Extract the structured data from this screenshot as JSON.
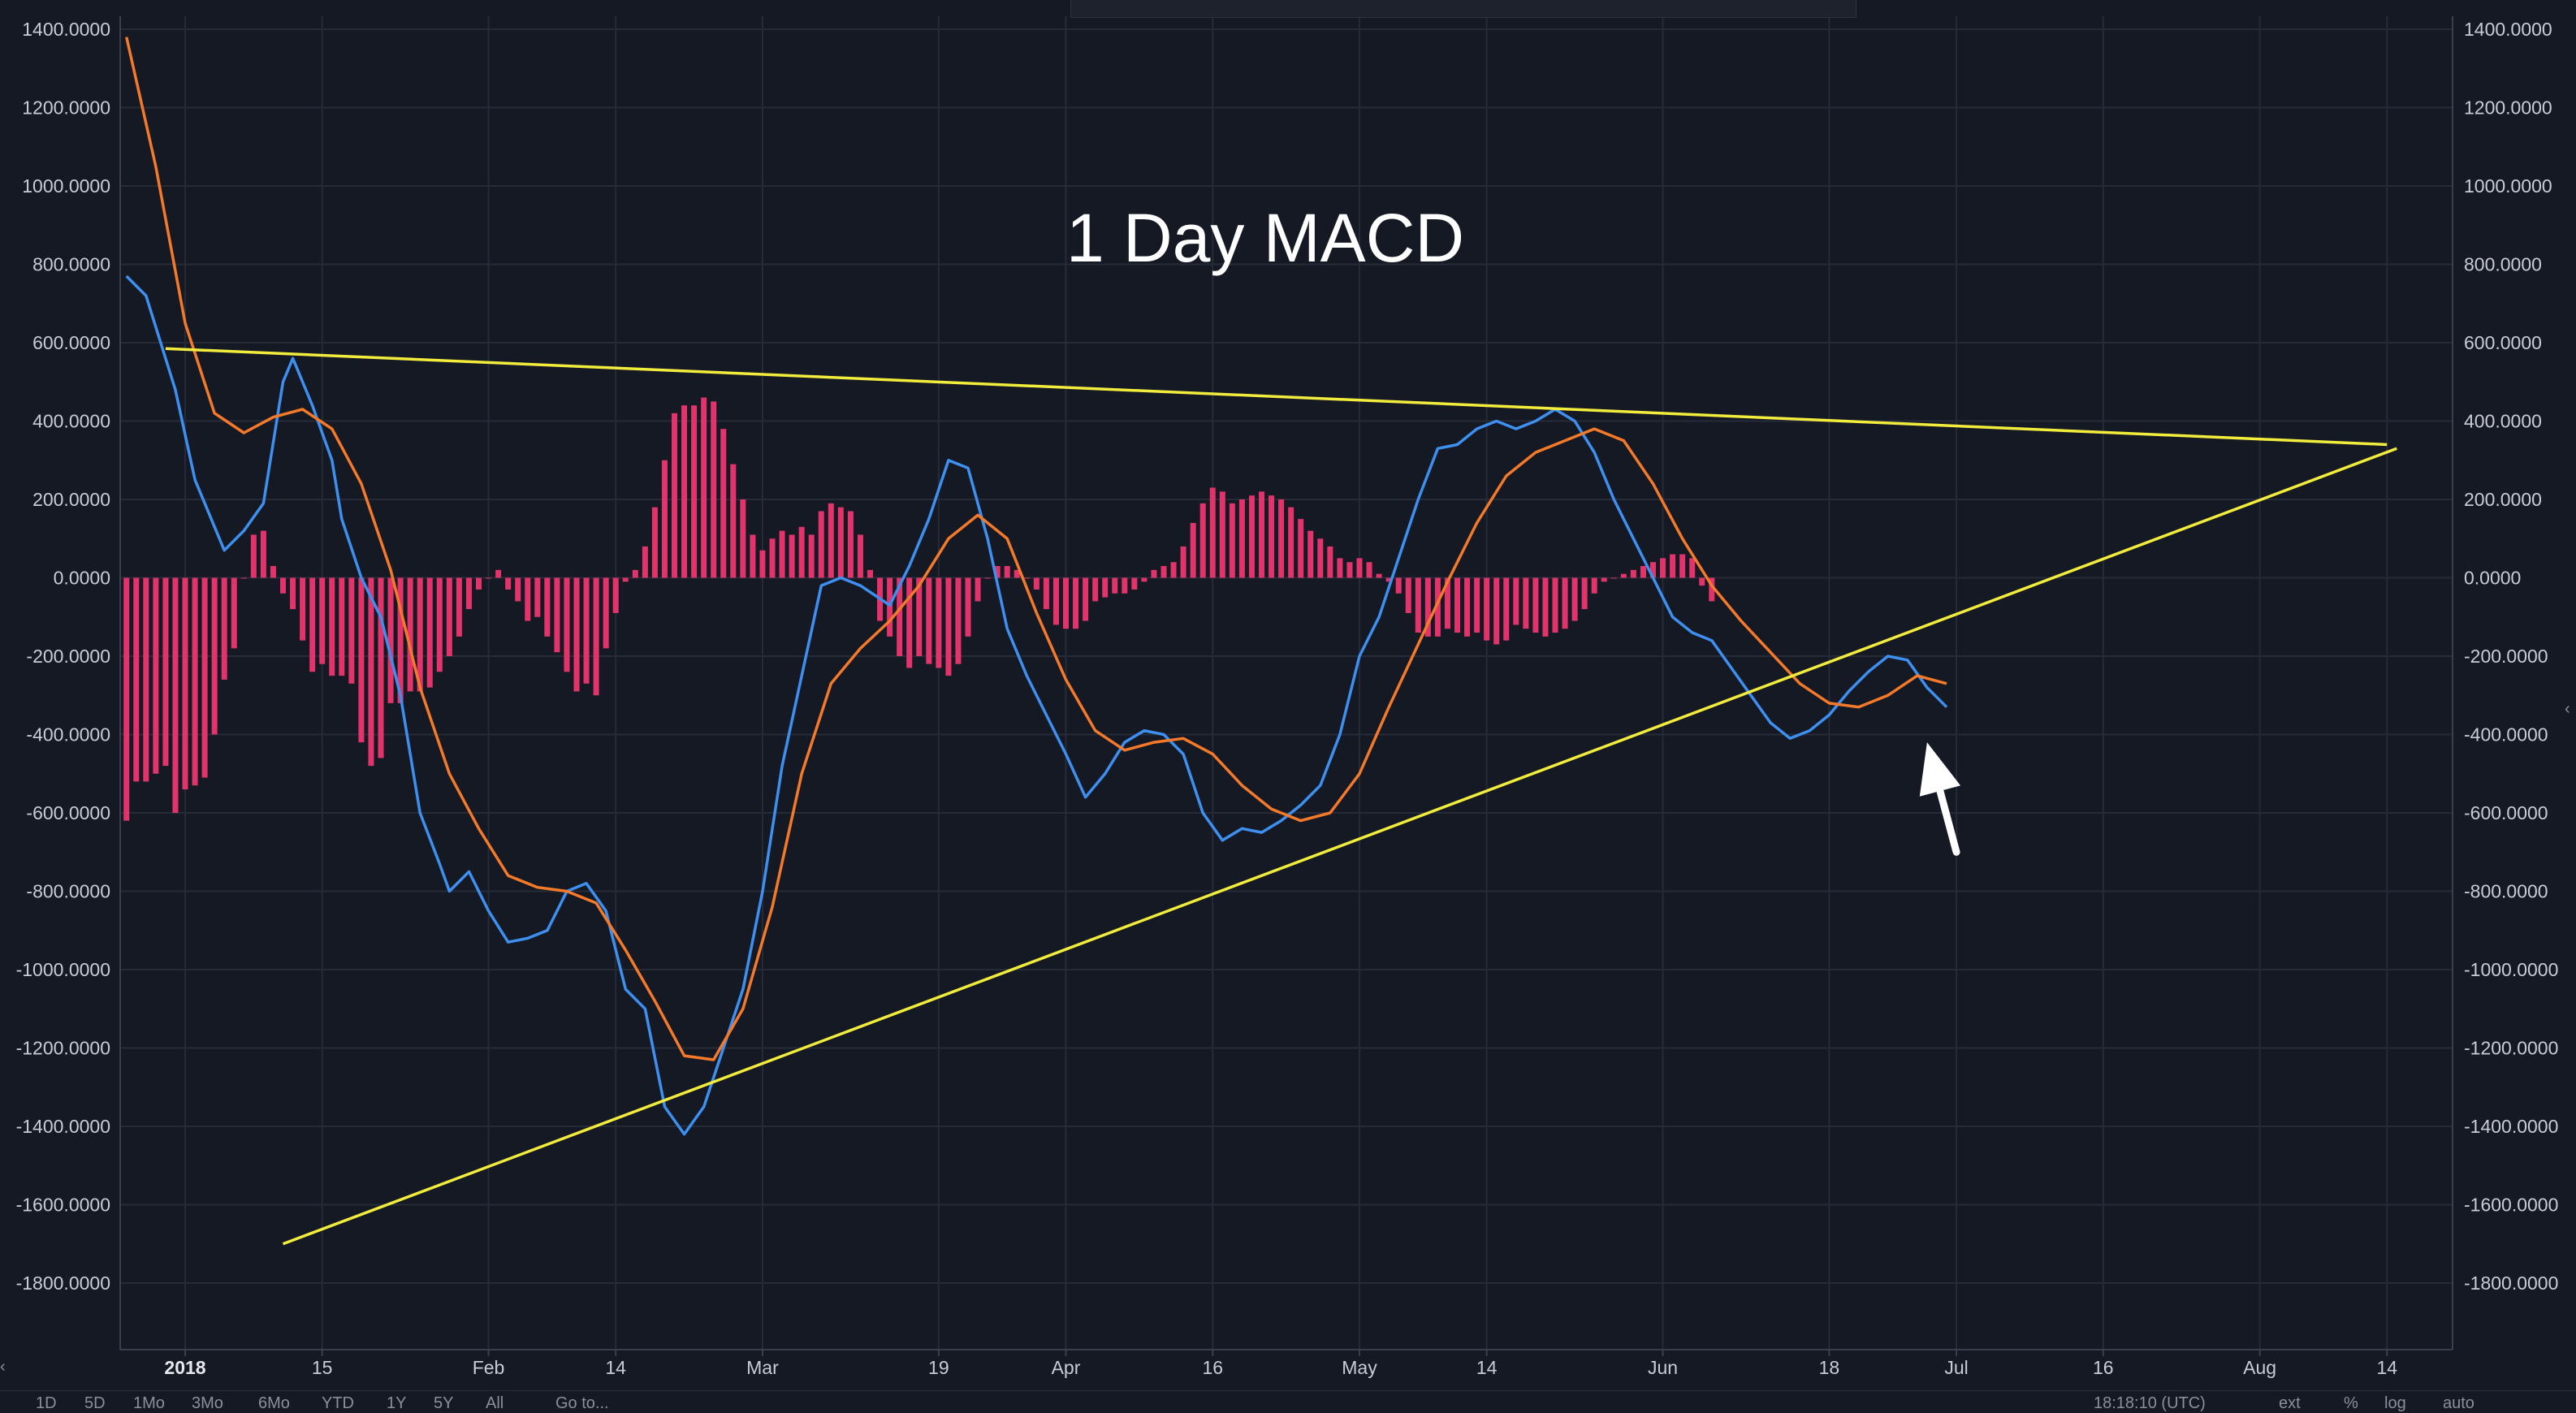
{
  "colors": {
    "background": "#151924",
    "grid": "#262b38",
    "axis_text": "#c9ccd6",
    "macd_line": "#3d8ff0",
    "signal_line": "#f47a2a",
    "histogram": "#e2336b",
    "trendline": "#f2ec3c",
    "arrow": "#ffffff"
  },
  "chart_data": {
    "type": "line",
    "title": "1 Day MACD",
    "x_axis": {
      "type": "date",
      "range": [
        "2017-12-26",
        "2018-08-16"
      ],
      "ticks": [
        {
          "date": "2018-01-01",
          "label": "2018",
          "bold": true
        },
        {
          "date": "2018-01-15",
          "label": "15"
        },
        {
          "date": "2018-02-01",
          "label": "Feb"
        },
        {
          "date": "2018-02-14",
          "label": "14"
        },
        {
          "date": "2018-03-01",
          "label": "Mar"
        },
        {
          "date": "2018-03-19",
          "label": "19"
        },
        {
          "date": "2018-04-01",
          "label": "Apr"
        },
        {
          "date": "2018-04-16",
          "label": "16"
        },
        {
          "date": "2018-05-01",
          "label": "May"
        },
        {
          "date": "2018-05-14",
          "label": "14"
        },
        {
          "date": "2018-06-01",
          "label": "Jun"
        },
        {
          "date": "2018-06-18",
          "label": "18"
        },
        {
          "date": "2018-07-01",
          "label": "Jul"
        },
        {
          "date": "2018-07-16",
          "label": "16"
        },
        {
          "date": "2018-08-01",
          "label": "Aug"
        },
        {
          "date": "2018-08-14",
          "label": "14"
        }
      ]
    },
    "y_axis": {
      "range": [
        -1900,
        1400
      ],
      "ticks": [
        1400,
        1200,
        1000,
        800,
        600,
        400,
        200,
        0,
        -200,
        -400,
        -600,
        -800,
        -1000,
        -1200,
        -1400,
        -1600,
        -1800
      ],
      "tick_labels": [
        "1400.0000",
        "1200.0000",
        "1000.0000",
        "800.0000",
        "600.0000",
        "400.0000",
        "200.0000",
        "0.0000",
        "-200.0000",
        "-400.0000",
        "-600.0000",
        "-800.0000",
        "-1000.0000",
        "-1200.0000",
        "-1400.0000",
        "-1600.0000",
        "-1800.0000"
      ],
      "grid": true,
      "labels_on": "both sides"
    },
    "series": [
      {
        "kind": "line",
        "color": "#3d8ff0",
        "points": [
          [
            "2017-12-26",
            770
          ],
          [
            "2017-12-28",
            720
          ],
          [
            "2017-12-31",
            480
          ],
          [
            "2018-01-02",
            250
          ],
          [
            "2018-01-05",
            70
          ],
          [
            "2018-01-07",
            120
          ],
          [
            "2018-01-09",
            190
          ],
          [
            "2018-01-11",
            500
          ],
          [
            "2018-01-12",
            560
          ],
          [
            "2018-01-14",
            440
          ],
          [
            "2018-01-16",
            300
          ],
          [
            "2018-01-17",
            150
          ],
          [
            "2018-01-19",
            0
          ],
          [
            "2018-01-21",
            -100
          ],
          [
            "2018-01-23",
            -300
          ],
          [
            "2018-01-25",
            -600
          ],
          [
            "2018-01-27",
            -730
          ],
          [
            "2018-01-28",
            -800
          ],
          [
            "2018-01-30",
            -750
          ],
          [
            "2018-02-01",
            -850
          ],
          [
            "2018-02-03",
            -930
          ],
          [
            "2018-02-05",
            -920
          ],
          [
            "2018-02-07",
            -900
          ],
          [
            "2018-02-09",
            -800
          ],
          [
            "2018-02-11",
            -780
          ],
          [
            "2018-02-13",
            -850
          ],
          [
            "2018-02-15",
            -1050
          ],
          [
            "2018-02-17",
            -1100
          ],
          [
            "2018-02-19",
            -1350
          ],
          [
            "2018-02-21",
            -1420
          ],
          [
            "2018-02-23",
            -1350
          ],
          [
            "2018-02-25",
            -1200
          ],
          [
            "2018-02-27",
            -1050
          ],
          [
            "2018-03-01",
            -800
          ],
          [
            "2018-03-03",
            -480
          ],
          [
            "2018-03-05",
            -250
          ],
          [
            "2018-03-07",
            -20
          ],
          [
            "2018-03-09",
            0
          ],
          [
            "2018-03-11",
            -20
          ],
          [
            "2018-03-14",
            -70
          ],
          [
            "2018-03-16",
            30
          ],
          [
            "2018-03-18",
            150
          ],
          [
            "2018-03-20",
            300
          ],
          [
            "2018-03-22",
            280
          ],
          [
            "2018-03-24",
            100
          ],
          [
            "2018-03-26",
            -130
          ],
          [
            "2018-03-28",
            -250
          ],
          [
            "2018-03-30",
            -350
          ],
          [
            "2018-04-01",
            -450
          ],
          [
            "2018-04-03",
            -560
          ],
          [
            "2018-04-05",
            -500
          ],
          [
            "2018-04-07",
            -420
          ],
          [
            "2018-04-09",
            -390
          ],
          [
            "2018-04-11",
            -400
          ],
          [
            "2018-04-13",
            -450
          ],
          [
            "2018-04-15",
            -600
          ],
          [
            "2018-04-17",
            -670
          ],
          [
            "2018-04-19",
            -640
          ],
          [
            "2018-04-21",
            -650
          ],
          [
            "2018-04-23",
            -620
          ],
          [
            "2018-04-25",
            -580
          ],
          [
            "2018-04-27",
            -530
          ],
          [
            "2018-04-29",
            -400
          ],
          [
            "2018-05-01",
            -200
          ],
          [
            "2018-05-03",
            -100
          ],
          [
            "2018-05-05",
            50
          ],
          [
            "2018-05-07",
            200
          ],
          [
            "2018-05-09",
            330
          ],
          [
            "2018-05-11",
            340
          ],
          [
            "2018-05-13",
            380
          ],
          [
            "2018-05-15",
            400
          ],
          [
            "2018-05-17",
            380
          ],
          [
            "2018-05-19",
            400
          ],
          [
            "2018-05-21",
            430
          ],
          [
            "2018-05-23",
            400
          ],
          [
            "2018-05-25",
            320
          ],
          [
            "2018-05-27",
            200
          ],
          [
            "2018-05-29",
            100
          ],
          [
            "2018-05-31",
            0
          ],
          [
            "2018-06-02",
            -100
          ],
          [
            "2018-06-04",
            -140
          ],
          [
            "2018-06-06",
            -160
          ],
          [
            "2018-06-08",
            -230
          ],
          [
            "2018-06-10",
            -300
          ],
          [
            "2018-06-12",
            -370
          ],
          [
            "2018-06-14",
            -410
          ],
          [
            "2018-06-16",
            -390
          ],
          [
            "2018-06-18",
            -350
          ],
          [
            "2018-06-20",
            -290
          ],
          [
            "2018-06-22",
            -240
          ],
          [
            "2018-06-24",
            -200
          ],
          [
            "2018-06-26",
            -210
          ],
          [
            "2018-06-28",
            -280
          ],
          [
            "2018-06-30",
            -330
          ]
        ]
      },
      {
        "kind": "line",
        "color": "#f47a2a",
        "points": [
          [
            "2017-12-26",
            1380
          ],
          [
            "2017-12-29",
            1050
          ],
          [
            "2018-01-01",
            650
          ],
          [
            "2018-01-04",
            420
          ],
          [
            "2018-01-07",
            370
          ],
          [
            "2018-01-10",
            410
          ],
          [
            "2018-01-13",
            430
          ],
          [
            "2018-01-16",
            380
          ],
          [
            "2018-01-19",
            240
          ],
          [
            "2018-01-22",
            20
          ],
          [
            "2018-01-25",
            -280
          ],
          [
            "2018-01-28",
            -500
          ],
          [
            "2018-01-31",
            -640
          ],
          [
            "2018-02-03",
            -760
          ],
          [
            "2018-02-06",
            -790
          ],
          [
            "2018-02-09",
            -800
          ],
          [
            "2018-02-12",
            -830
          ],
          [
            "2018-02-15",
            -950
          ],
          [
            "2018-02-18",
            -1080
          ],
          [
            "2018-02-21",
            -1220
          ],
          [
            "2018-02-24",
            -1230
          ],
          [
            "2018-02-27",
            -1100
          ],
          [
            "2018-03-02",
            -840
          ],
          [
            "2018-03-05",
            -500
          ],
          [
            "2018-03-08",
            -270
          ],
          [
            "2018-03-11",
            -180
          ],
          [
            "2018-03-14",
            -110
          ],
          [
            "2018-03-17",
            -20
          ],
          [
            "2018-03-20",
            100
          ],
          [
            "2018-03-23",
            160
          ],
          [
            "2018-03-26",
            100
          ],
          [
            "2018-03-29",
            -90
          ],
          [
            "2018-04-01",
            -260
          ],
          [
            "2018-04-04",
            -390
          ],
          [
            "2018-04-07",
            -440
          ],
          [
            "2018-04-10",
            -420
          ],
          [
            "2018-04-13",
            -410
          ],
          [
            "2018-04-16",
            -450
          ],
          [
            "2018-04-19",
            -530
          ],
          [
            "2018-04-22",
            -590
          ],
          [
            "2018-04-25",
            -620
          ],
          [
            "2018-04-28",
            -600
          ],
          [
            "2018-05-01",
            -500
          ],
          [
            "2018-05-04",
            -330
          ],
          [
            "2018-05-07",
            -170
          ],
          [
            "2018-05-10",
            -10
          ],
          [
            "2018-05-13",
            140
          ],
          [
            "2018-05-16",
            260
          ],
          [
            "2018-05-19",
            320
          ],
          [
            "2018-05-22",
            350
          ],
          [
            "2018-05-25",
            380
          ],
          [
            "2018-05-28",
            350
          ],
          [
            "2018-05-31",
            240
          ],
          [
            "2018-06-03",
            100
          ],
          [
            "2018-06-06",
            -20
          ],
          [
            "2018-06-09",
            -110
          ],
          [
            "2018-06-12",
            -190
          ],
          [
            "2018-06-15",
            -270
          ],
          [
            "2018-06-18",
            -320
          ],
          [
            "2018-06-21",
            -330
          ],
          [
            "2018-06-24",
            -300
          ],
          [
            "2018-06-27",
            -250
          ],
          [
            "2018-06-30",
            -270
          ]
        ]
      },
      {
        "kind": "histogram",
        "color": "#e2336b",
        "start_date": "2017-12-26",
        "step_days": 1,
        "values": [
          -620,
          -520,
          -520,
          -500,
          -480,
          -600,
          -540,
          -530,
          -510,
          -400,
          -260,
          -180,
          0,
          110,
          120,
          30,
          -40,
          -80,
          -160,
          -240,
          -220,
          -250,
          -250,
          -270,
          -420,
          -480,
          -460,
          -320,
          -320,
          -290,
          -290,
          -280,
          -240,
          -200,
          -150,
          -80,
          -30,
          0,
          20,
          -30,
          -60,
          -110,
          -100,
          -150,
          -190,
          -240,
          -290,
          -270,
          -300,
          -180,
          -90,
          -10,
          20,
          80,
          180,
          300,
          420,
          440,
          440,
          460,
          450,
          380,
          290,
          200,
          110,
          70,
          100,
          120,
          110,
          130,
          110,
          170,
          190,
          180,
          170,
          110,
          20,
          -110,
          -150,
          -200,
          -230,
          -200,
          -220,
          -230,
          -250,
          -220,
          -150,
          -60,
          0,
          30,
          30,
          20,
          0,
          -30,
          -80,
          -120,
          -130,
          -130,
          -110,
          -60,
          -50,
          -40,
          -40,
          -30,
          -10,
          20,
          30,
          40,
          80,
          140,
          190,
          230,
          220,
          190,
          200,
          210,
          220,
          210,
          200,
          180,
          150,
          120,
          100,
          80,
          50,
          40,
          50,
          40,
          10,
          -10,
          -40,
          -90,
          -140,
          -150,
          -150,
          -130,
          -140,
          -150,
          -140,
          -160,
          -170,
          -160,
          -120,
          -130,
          -140,
          -150,
          -140,
          -130,
          -110,
          -80,
          -40,
          -10,
          0,
          10,
          20,
          30,
          40,
          50,
          60,
          60,
          50,
          -20,
          -60
        ]
      }
    ],
    "annotations": [
      {
        "kind": "trendline",
        "color": "#f2ec3c",
        "from": [
          "2017-12-30",
          585
        ],
        "to": [
          "2018-08-14",
          340
        ]
      },
      {
        "kind": "trendline",
        "color": "#f2ec3c",
        "from": [
          "2018-01-11",
          -1700
        ],
        "to": [
          "2018-08-15",
          330
        ]
      },
      {
        "kind": "arrow",
        "color": "#ffffff",
        "from": [
          "2018-07-01",
          -700
        ],
        "to": [
          "2018-06-28",
          -420
        ]
      }
    ]
  },
  "bottom_bar": {
    "periods": [
      "1D",
      "5D",
      "1Mo",
      "3Mo",
      "6Mo",
      "YTD",
      "1Y",
      "5Y",
      "All"
    ],
    "goto": "Go to...",
    "clock": "18:18:10 (UTC)",
    "options": [
      "ext",
      "%",
      "log",
      "auto"
    ]
  }
}
